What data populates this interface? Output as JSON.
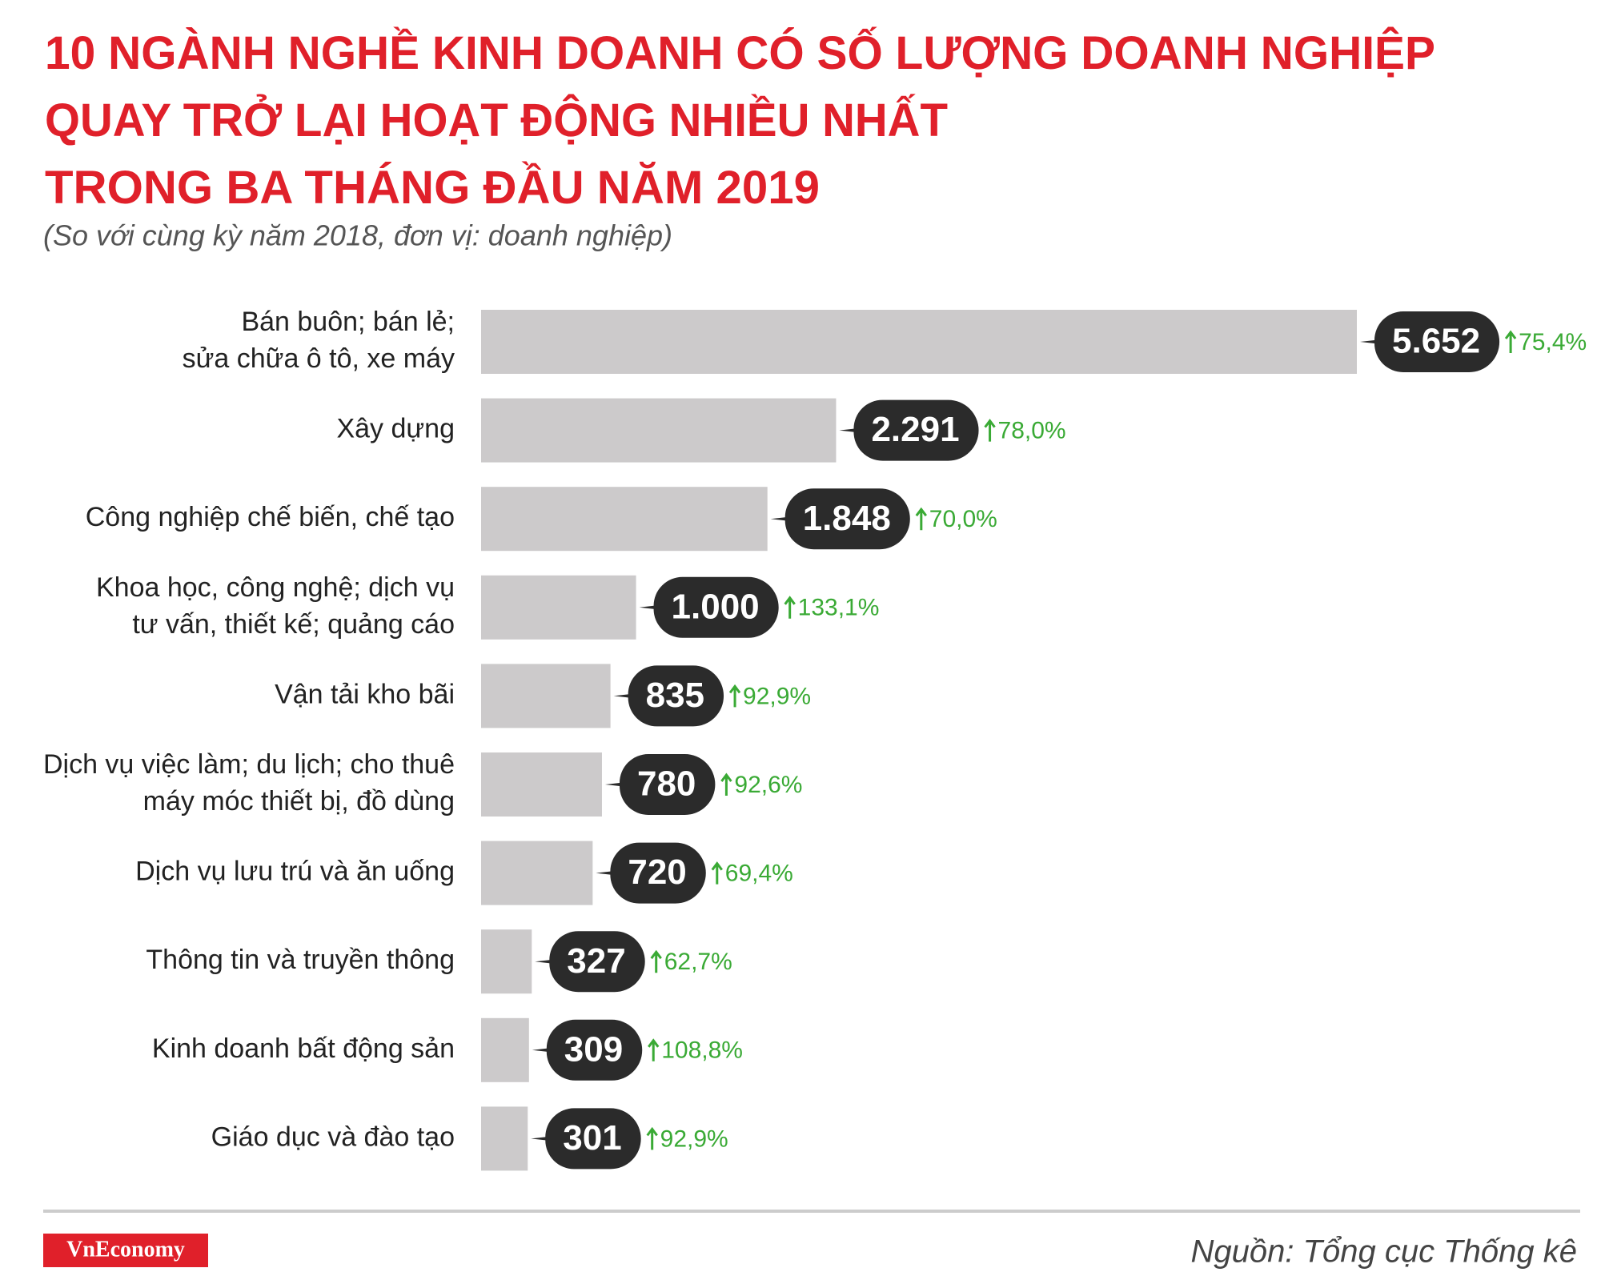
{
  "chart_data": {
    "type": "bar",
    "title": [
      "10 NGÀNH NGHỀ KINH DOANH CÓ SỐ LƯỢNG DOANH NGHIỆP",
      "QUAY TRỞ LẠI HOẠT ĐỘNG NHIỀU NHẤT",
      "TRONG BA THÁNG ĐẦU NĂM 2019"
    ],
    "subtitle": "(So với cùng kỳ năm 2018, đơn vị: doanh nghiệp)",
    "categories": [
      [
        "Bán buôn; bán lẻ;",
        "sửa chữa ô tô, xe máy"
      ],
      [
        "Xây dựng"
      ],
      [
        "Công nghiệp chế biến, chế tạo"
      ],
      [
        "Khoa học, công nghệ; dịch vụ",
        "tư vấn, thiết kế; quảng cáo"
      ],
      [
        "Vận tải kho bãi"
      ],
      [
        "Dịch vụ việc làm; du lịch; cho thuê",
        "máy móc thiết bị, đồ dùng"
      ],
      [
        "Dịch vụ lưu trú và ăn uống"
      ],
      [
        "Thông tin và truyền thông"
      ],
      [
        "Kinh doanh bất động sản"
      ],
      [
        "Giáo dục và đào tạo"
      ]
    ],
    "values": [
      5652,
      2291,
      1848,
      1000,
      835,
      780,
      720,
      327,
      309,
      301
    ],
    "value_labels": [
      "5.652",
      "2.291",
      "1.848",
      "1.000",
      "835",
      "780",
      "720",
      "327",
      "309",
      "301"
    ],
    "color": "#cccacb",
    "growth": {
      "values": [
        75.4,
        78.0,
        70.0,
        133.1,
        92.9,
        92.6,
        69.4,
        62.7,
        108.8,
        92.9
      ],
      "value_labels": [
        "75,4%",
        "78,0%",
        "70,0%",
        "133,1%",
        "92,9%",
        "92,6%",
        "69,4%",
        "62,7%",
        "108,8%",
        "92,9%"
      ],
      "color": "#3aaa35"
    },
    "source": "Nguồn: Tổng cục Thống kê",
    "logo": "VnEconomy"
  }
}
